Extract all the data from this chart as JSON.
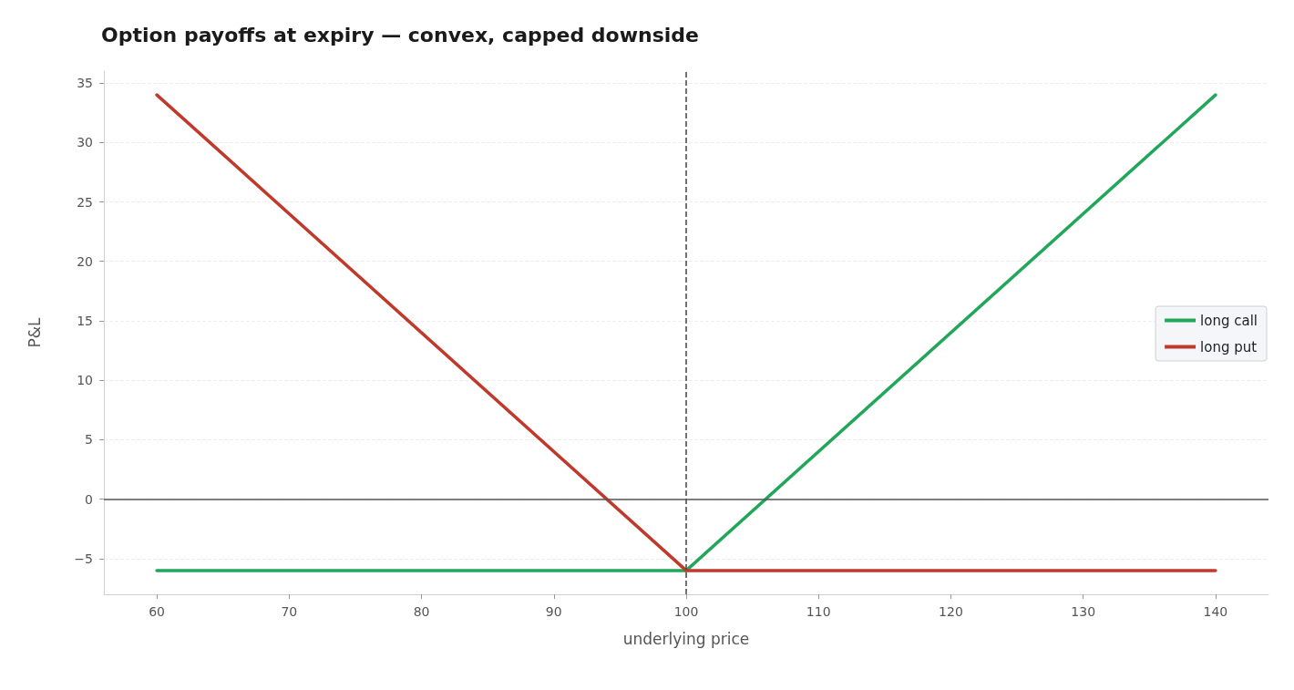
{
  "chart_data": {
    "type": "line",
    "title": "Option payoffs at expiry — convex, capped downside",
    "xlabel": "underlying price",
    "ylabel": "P&L",
    "x": [
      60,
      100,
      140
    ],
    "series": [
      {
        "name": "long call",
        "color": "#22a75a",
        "values": [
          -6,
          -6,
          34
        ]
      },
      {
        "name": "long put",
        "color": "#c0392b",
        "values": [
          34,
          -6,
          -6
        ]
      }
    ],
    "xlim": [
      56,
      144
    ],
    "xticks": [
      60,
      70,
      80,
      90,
      100,
      110,
      120,
      130,
      140
    ],
    "ylim": [
      -8,
      36
    ],
    "yticks": [
      {
        "value": -5,
        "label": "−5"
      },
      0,
      5,
      10,
      15,
      20,
      25,
      30,
      35
    ],
    "ref_lines": [
      {
        "axis": "x",
        "value": 100,
        "color": "#444444",
        "line_style": "dashed"
      },
      {
        "axis": "y",
        "value": 0,
        "color": "#555555",
        "line_style": "solid"
      }
    ],
    "grid": "y",
    "legend": "right",
    "marker": "none",
    "line_style": "solid"
  }
}
